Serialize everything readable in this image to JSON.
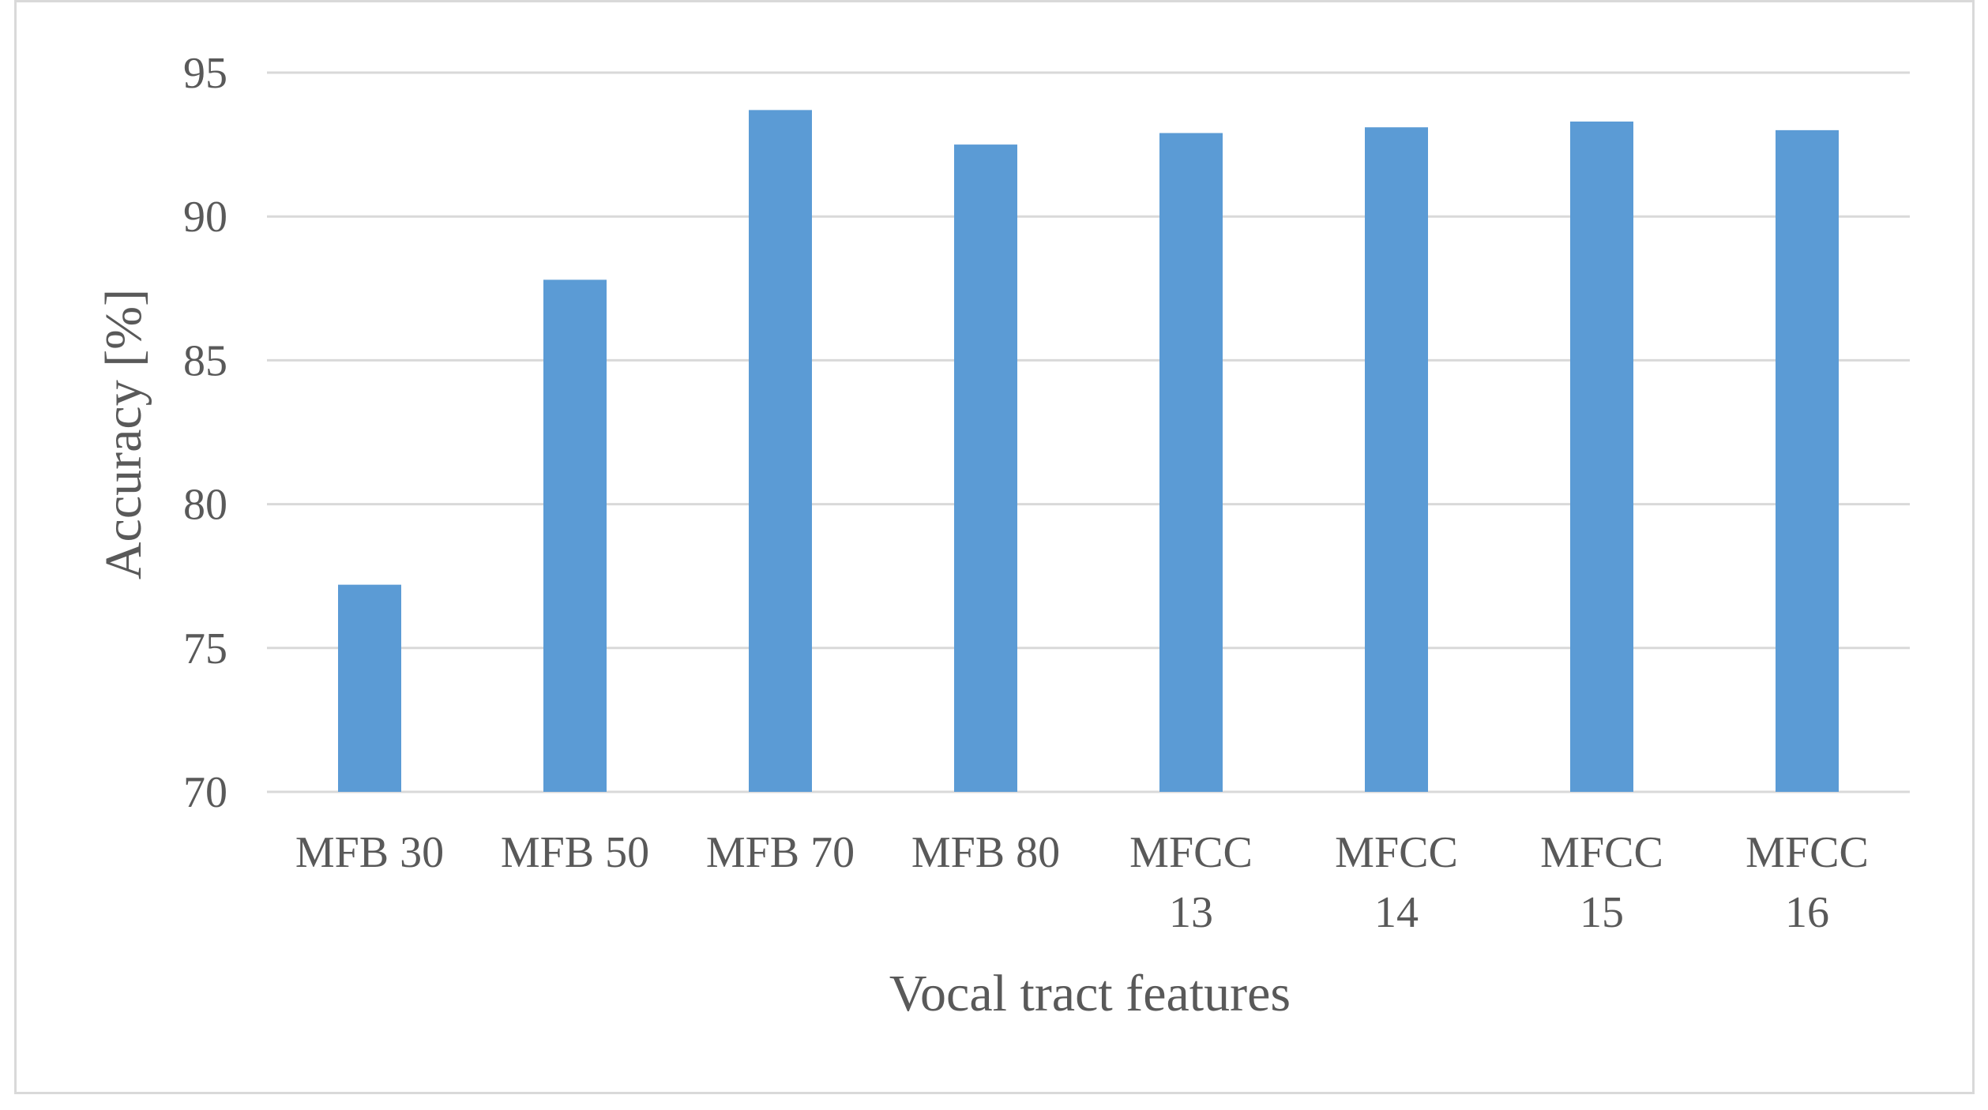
{
  "chart_data": {
    "type": "bar",
    "title": "",
    "xlabel": "Vocal tract features",
    "ylabel": "Accuracy [%]",
    "ylim": [
      70,
      95
    ],
    "yticks": [
      70,
      75,
      80,
      85,
      90,
      95
    ],
    "grid": true,
    "legend": "none",
    "bar_color": "#5b9bd5",
    "categories": [
      [
        "MFB 30"
      ],
      [
        "MFB 50"
      ],
      [
        "MFB 70"
      ],
      [
        "MFB 80"
      ],
      [
        "MFCC",
        "13"
      ],
      [
        "MFCC",
        "14"
      ],
      [
        "MFCC",
        "15"
      ],
      [
        "MFCC",
        "16"
      ]
    ],
    "values": [
      77.2,
      87.8,
      93.7,
      92.5,
      92.9,
      93.1,
      93.3,
      93.0
    ]
  }
}
